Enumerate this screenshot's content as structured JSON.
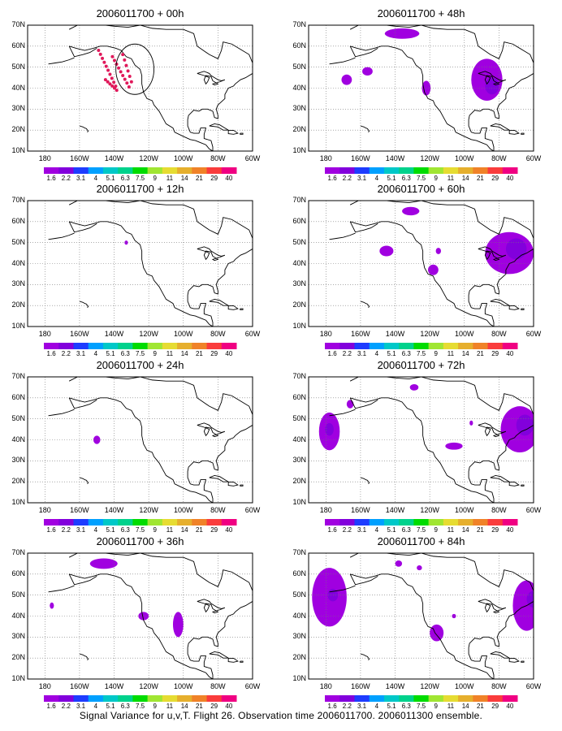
{
  "panels": [
    {
      "title": "2006011700 + 00h"
    },
    {
      "title": "2006011700 + 48h"
    },
    {
      "title": "2006011700 + 12h"
    },
    {
      "title": "2006011700 + 60h"
    },
    {
      "title": "2006011700 + 24h"
    },
    {
      "title": "2006011700 + 72h"
    },
    {
      "title": "2006011700 + 36h"
    },
    {
      "title": "2006011700 + 84h"
    }
  ],
  "axes": {
    "lat_labels": [
      "70N",
      "60N",
      "50N",
      "40N",
      "30N",
      "20N",
      "10N"
    ],
    "lon_labels": [
      "180",
      "160W",
      "140W",
      "120W",
      "100W",
      "80W",
      "60W"
    ],
    "lat_range": [
      10,
      70
    ],
    "lon_range": [
      -190,
      -60
    ],
    "grid": "dotted"
  },
  "colorbar": {
    "labels": [
      "1.6",
      "2.2",
      "3.1",
      "4",
      "5.1",
      "6.3",
      "7.5",
      "9",
      "11",
      "14",
      "21",
      "29",
      "40"
    ],
    "colors": [
      "#a000e0",
      "#8200dc",
      "#1e3cff",
      "#00a0ff",
      "#00c8c8",
      "#00d28c",
      "#00dc00",
      "#a0e632",
      "#e6dc32",
      "#e6af2d",
      "#f08228",
      "#fa3c3c",
      "#f00082"
    ]
  },
  "caption": "Signal Variance for u,v,T. Flight 26. Observation time 2006011700. 2006011300 ensemble."
}
